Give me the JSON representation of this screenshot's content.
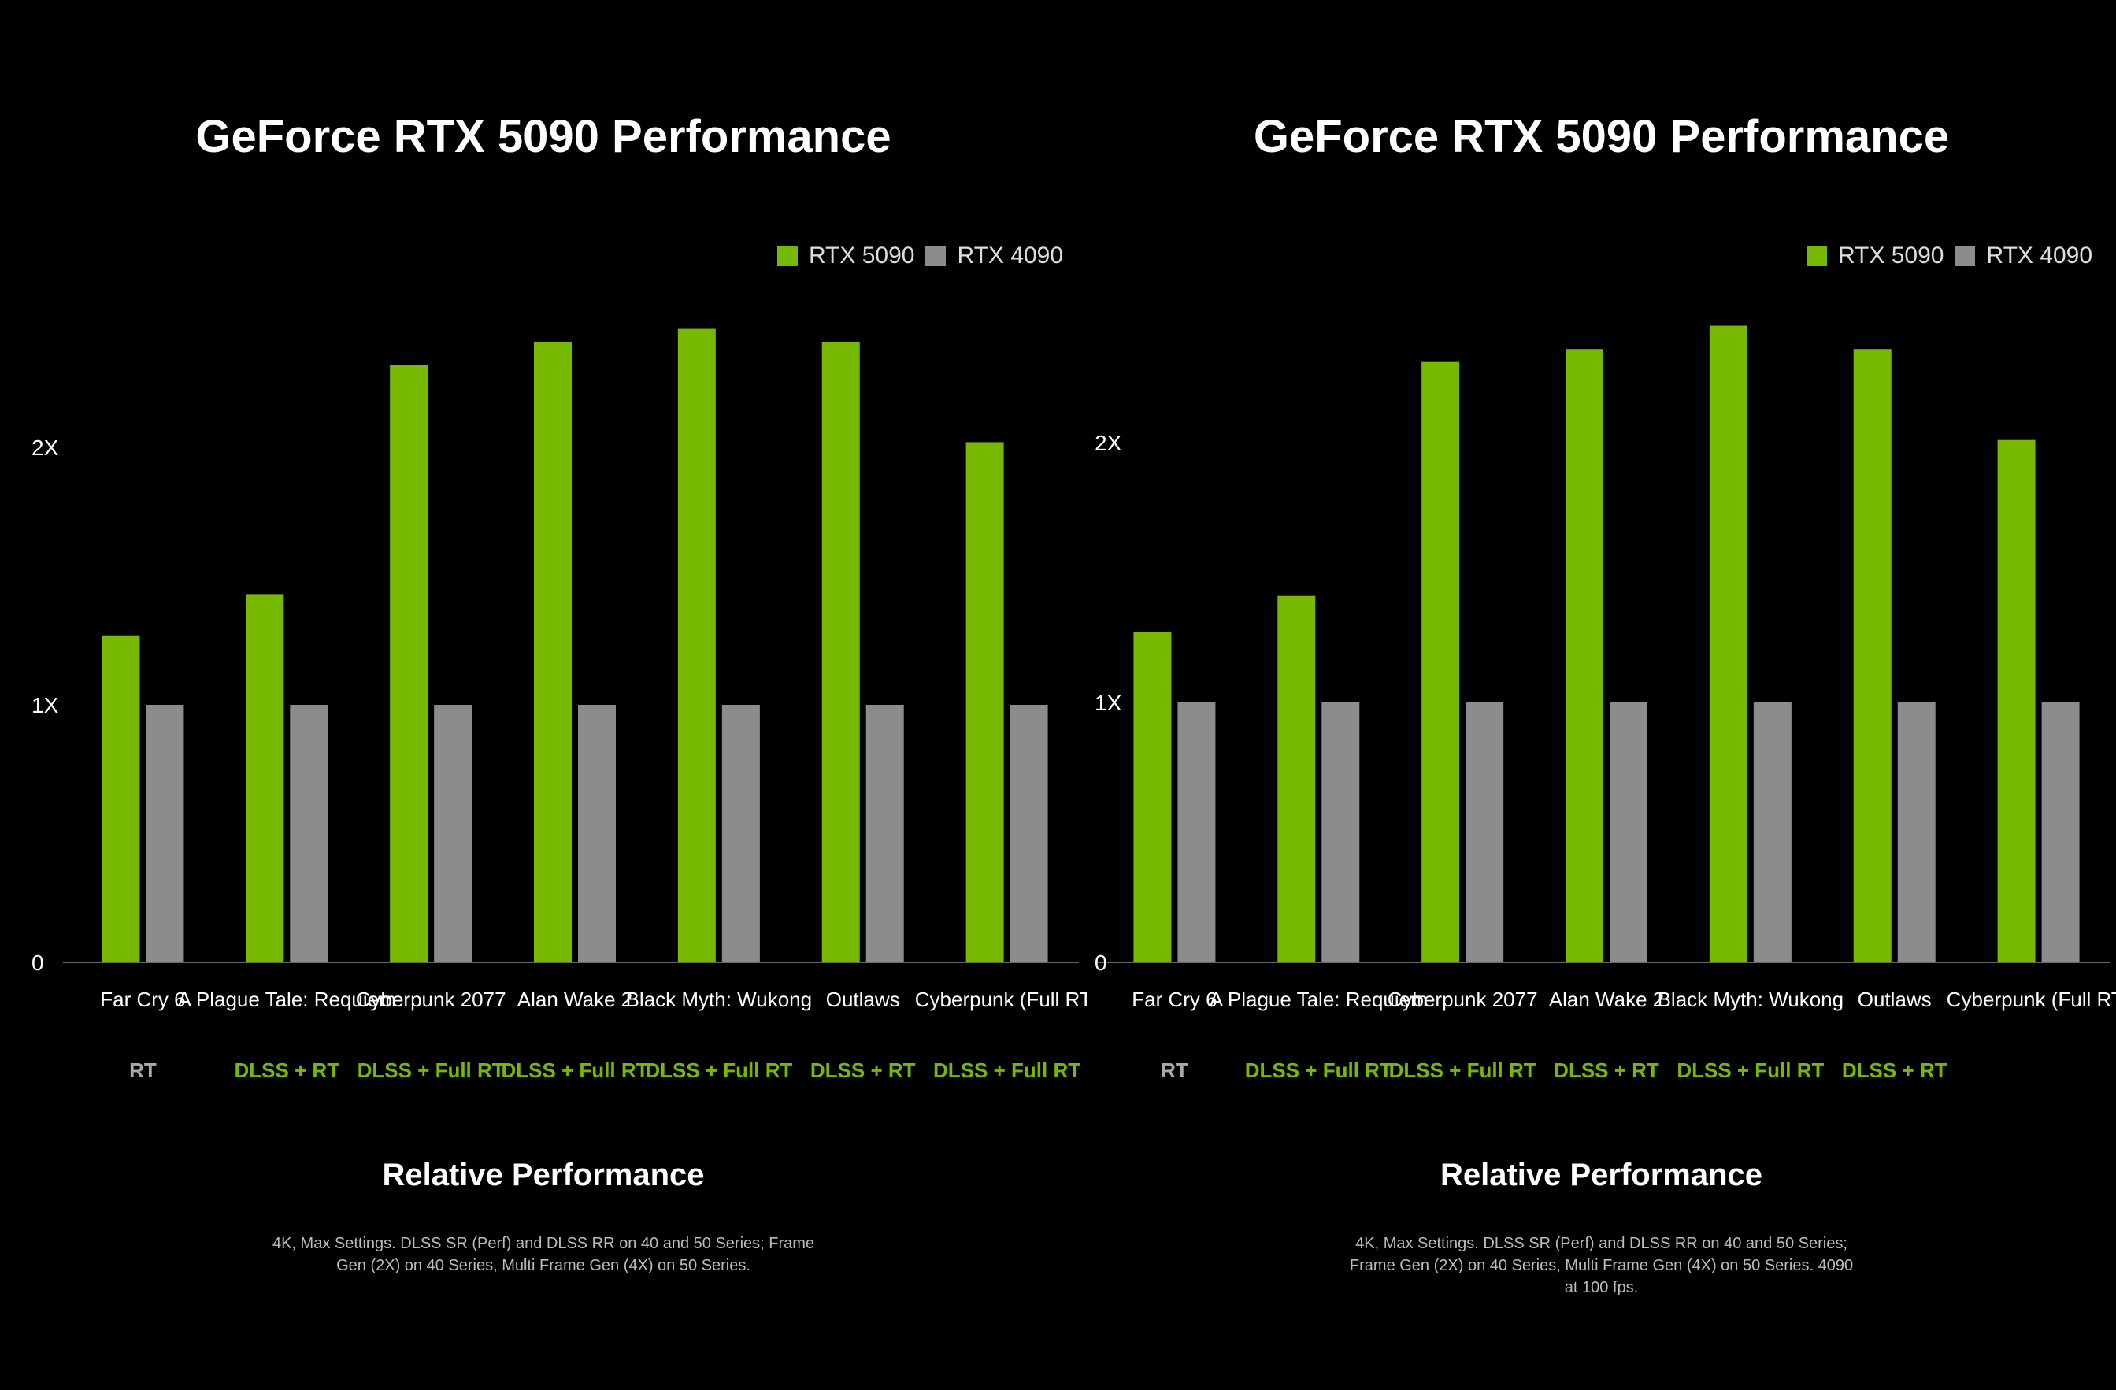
{
  "colors": {
    "rtx5090": "#76b900",
    "rtx4090": "#8c8c8c",
    "background": "#000000",
    "dark_green": "#002a00"
  },
  "chart_data": [
    {
      "type": "bar",
      "title": "GeForce RTX 5090 Performance",
      "ylabel": "Relative Performance",
      "ylim": [
        0,
        2.6
      ],
      "yticks": [
        "0",
        "1X",
        "2X"
      ],
      "grid": false,
      "legend": "top-right",
      "categories": [
        "Far Cry 6",
        "A Plague Tale: Requiem",
        "Cyberpunk 2077",
        "Alan Wake 2",
        "Black Myth: Wukong",
        "Outlaws",
        "Cyberpunk (Full RT)"
      ],
      "sublabels": [
        "RT",
        "DLSS + RT",
        "DLSS + Full RT",
        "DLSS + Full RT",
        "DLSS + Full RT",
        "DLSS + RT",
        "DLSS + Full RT"
      ],
      "series": [
        {
          "name": "RTX 5090",
          "values": [
            1.27,
            1.43,
            2.32,
            2.41,
            2.46,
            2.41,
            2.02
          ]
        },
        {
          "name": "RTX 4090",
          "values": [
            1.0,
            1.0,
            1.0,
            1.0,
            1.0,
            1.0,
            1.0
          ]
        }
      ],
      "footnote": "4K, Max Settings. DLSS SR (Perf) and DLSS RR on 40 and 50 Series; Frame Gen (2X) on 40 Series, Multi Frame Gen (4X) on 50 Series."
    },
    {
      "type": "bar",
      "title": "GeForce RTX 5090 Performance",
      "ylabel": "Relative Performance",
      "ylim": [
        0,
        2.6
      ],
      "yticks": [
        "0",
        "1X",
        "2X"
      ],
      "grid": false,
      "legend": "top-right",
      "categories": [
        "Far Cry 6",
        "A Plague Tale: Requiem",
        "Cyberpunk 2077",
        "Alan Wake 2",
        "Black Myth: Wukong",
        "Outlaws",
        "Cyberpunk (Full RT)"
      ],
      "sublabels": [
        "RT",
        "DLSS + Full RT",
        "DLSS + Full RT",
        "DLSS + RT",
        "DLSS + Full RT",
        "DLSS + RT",
        ""
      ],
      "series": [
        {
          "name": "RTX 5090",
          "values": [
            1.27,
            1.41,
            2.31,
            2.36,
            2.45,
            2.36,
            2.01
          ]
        },
        {
          "name": "RTX 4090",
          "values": [
            1.0,
            1.0,
            1.0,
            1.0,
            1.0,
            1.0,
            1.0
          ]
        }
      ],
      "footnote": "4K, Max Settings. DLSS SR (Perf) and DLSS RR on 40 and 50 Series; Frame Gen (2X) on 40 Series, Multi Frame Gen (4X) on 50 Series. 4090 at 100 fps."
    }
  ]
}
